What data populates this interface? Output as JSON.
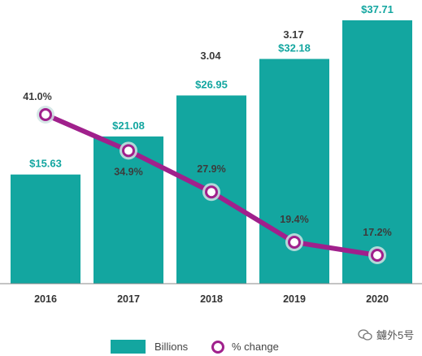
{
  "chart_data": {
    "type": "bar",
    "categories": [
      "2016",
      "2017",
      "2018",
      "2019",
      "2020"
    ],
    "series": [
      {
        "name": "Billions",
        "type": "bar",
        "values": [
          15.63,
          21.08,
          26.95,
          32.18,
          37.71
        ],
        "value_labels": [
          "$15.63",
          "$21.08",
          "$26.95",
          "$32.18",
          "$37.71"
        ],
        "color": "#13a6a0"
      },
      {
        "name": "% change",
        "type": "line",
        "values": [
          41.0,
          34.9,
          27.9,
          19.4,
          17.2
        ],
        "value_labels": [
          "41.0%",
          "34.9%",
          "27.9%",
          "19.4%",
          "17.2%"
        ],
        "color": "#a0208c"
      }
    ],
    "extra_labels": [
      "3.04",
      "3.17"
    ],
    "legend_position": "bottom",
    "grid": false
  },
  "watermark": {
    "text": "鑢外5号"
  },
  "colors": {
    "bar": "#13a6a0",
    "line": "#a0208c",
    "marker_ring": "#cfe3e3",
    "axis": "#888888"
  }
}
